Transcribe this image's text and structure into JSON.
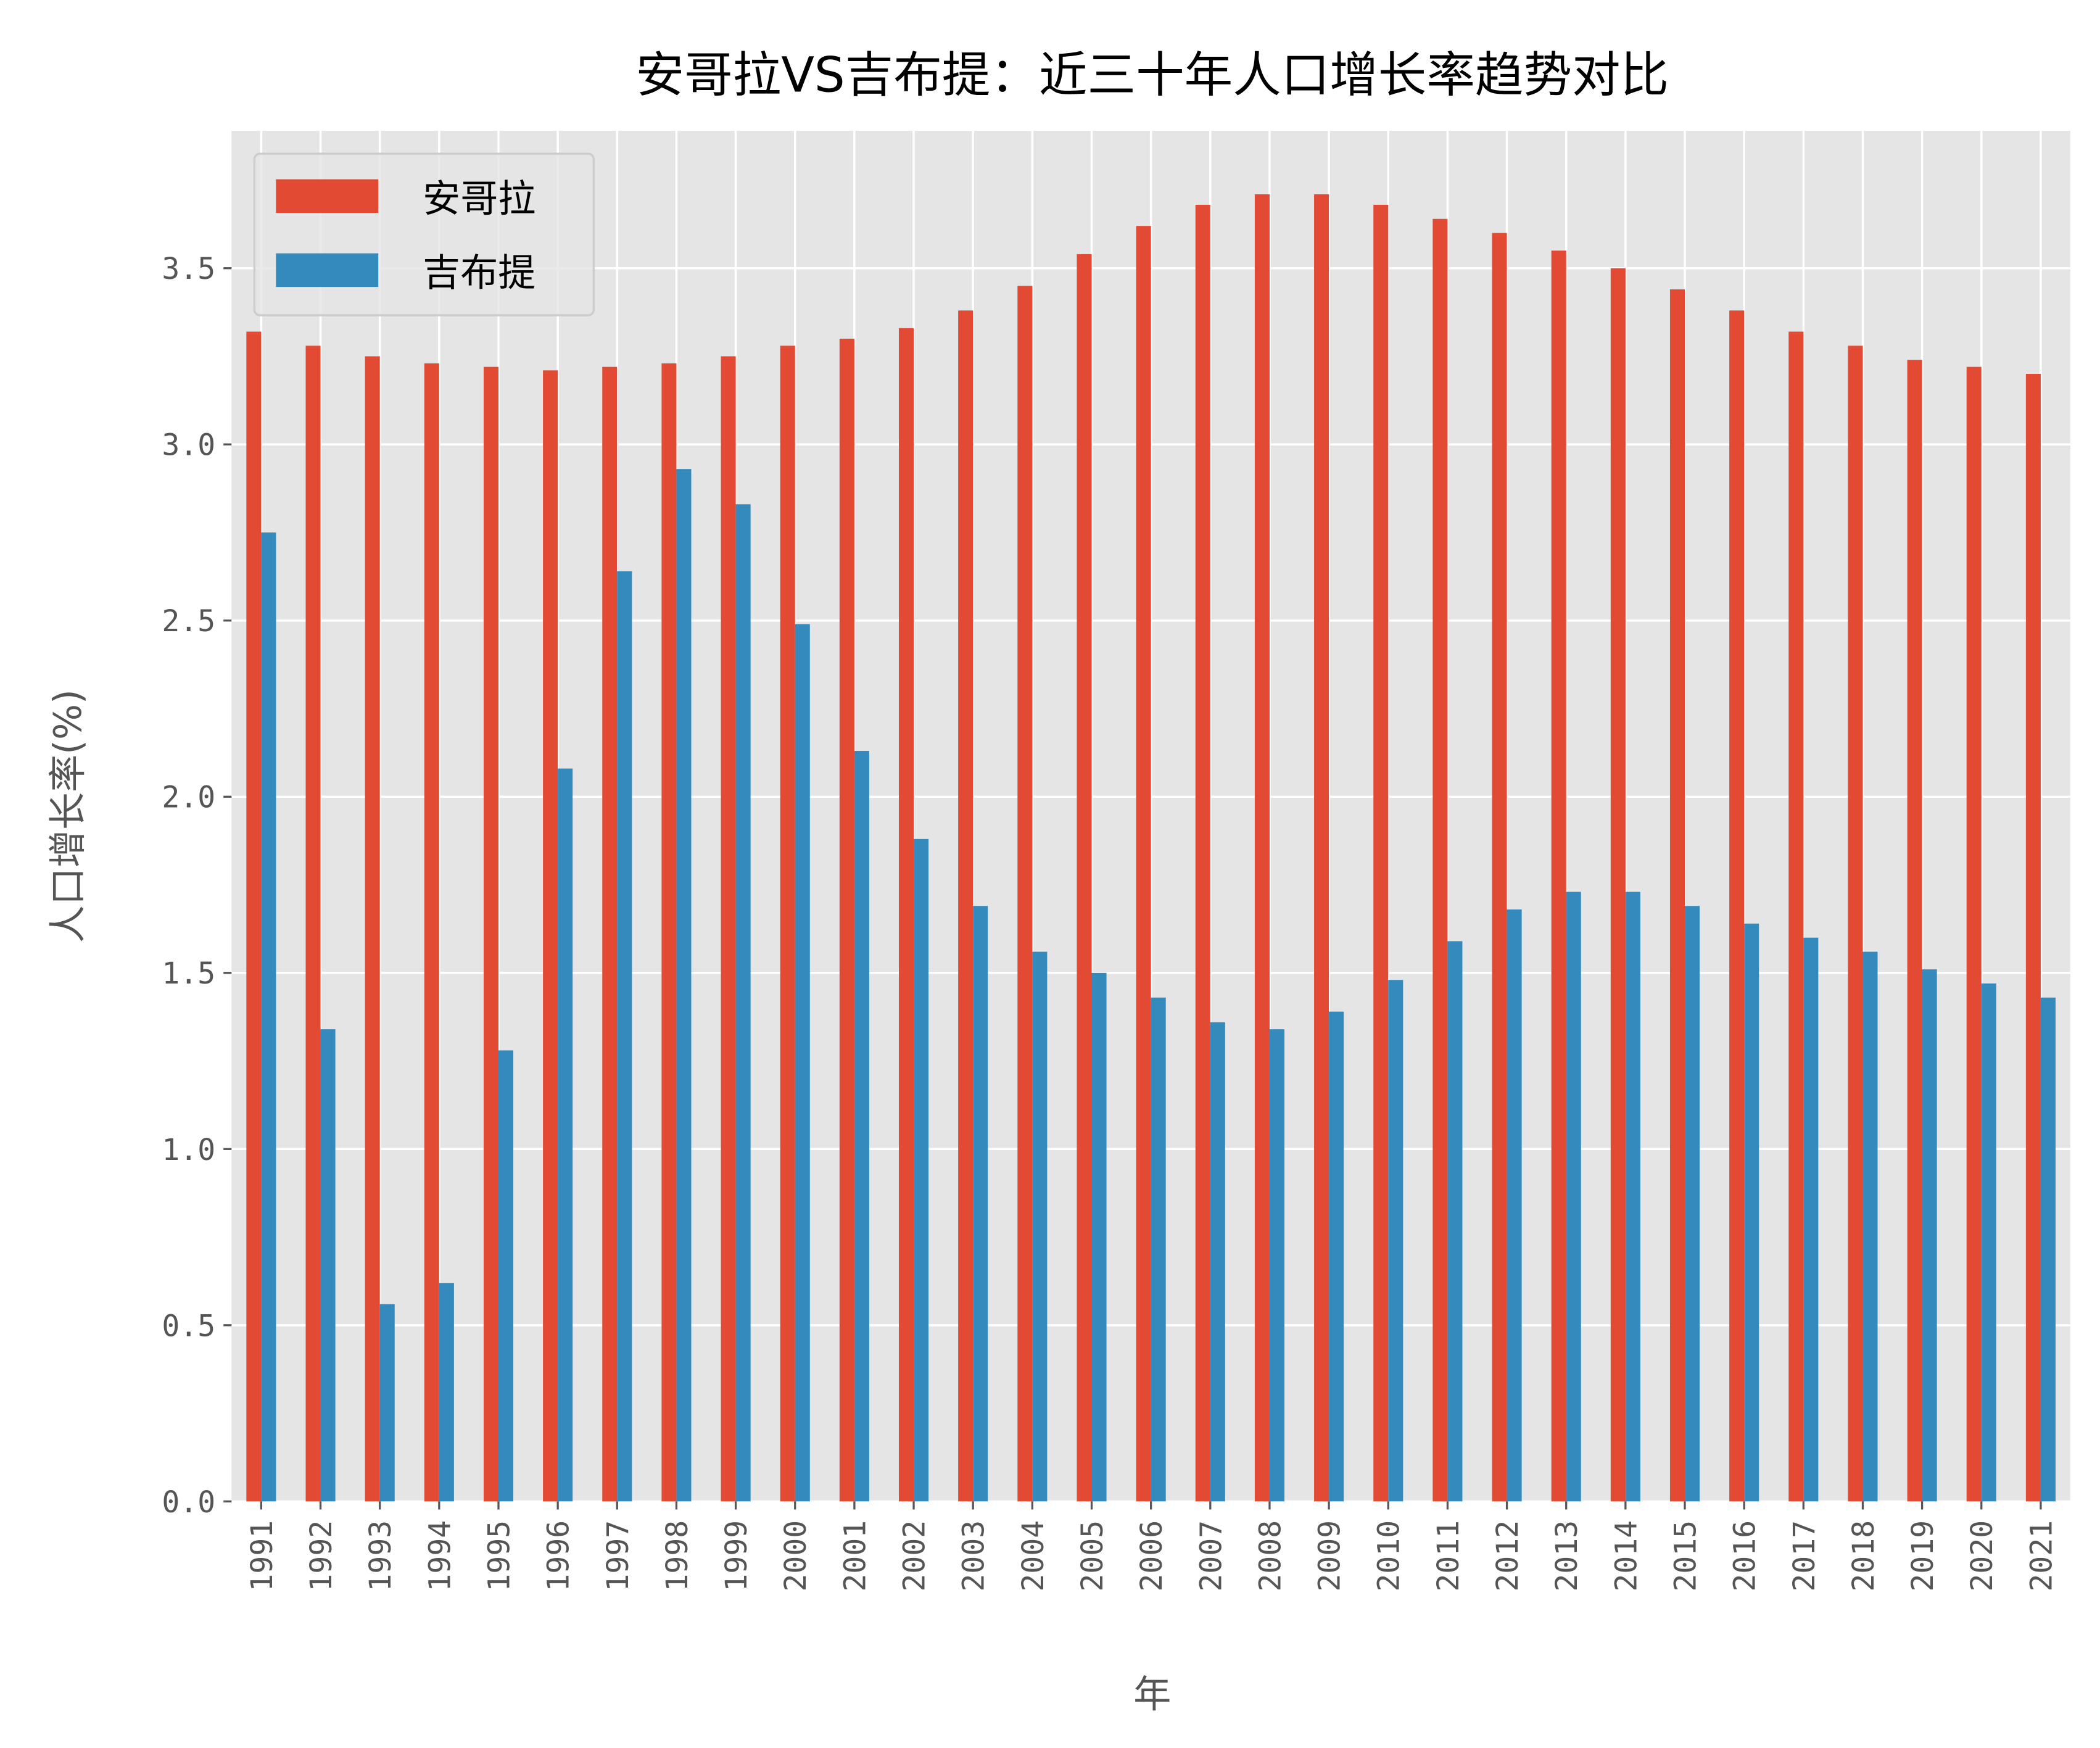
{
  "chart_data": {
    "type": "bar",
    "title": "安哥拉VS吉布提：近三十年人口增长率趋势对比",
    "xlabel": "年",
    "ylabel": "人口增长率(%)",
    "ylim": [
      0,
      3.89
    ],
    "yticks": [
      "0.0",
      "0.5",
      "1.0",
      "1.5",
      "2.0",
      "2.5",
      "3.0",
      "3.5"
    ],
    "grid": true,
    "legend_position": "top-left",
    "categories": [
      "1991",
      "1992",
      "1993",
      "1994",
      "1995",
      "1996",
      "1997",
      "1998",
      "1999",
      "2000",
      "2001",
      "2002",
      "2003",
      "2004",
      "2005",
      "2006",
      "2007",
      "2008",
      "2009",
      "2010",
      "2011",
      "2012",
      "2013",
      "2014",
      "2015",
      "2016",
      "2017",
      "2018",
      "2019",
      "2020",
      "2021"
    ],
    "series": [
      {
        "name": "安哥拉",
        "color": "#E24A33",
        "values": [
          3.32,
          3.28,
          3.25,
          3.23,
          3.22,
          3.21,
          3.22,
          3.23,
          3.25,
          3.28,
          3.3,
          3.33,
          3.38,
          3.45,
          3.54,
          3.62,
          3.68,
          3.71,
          3.71,
          3.68,
          3.64,
          3.6,
          3.55,
          3.5,
          3.44,
          3.38,
          3.32,
          3.28,
          3.24,
          3.22,
          3.2
        ]
      },
      {
        "name": "吉布提",
        "color": "#348ABD",
        "values": [
          2.75,
          1.34,
          0.56,
          0.62,
          1.28,
          2.08,
          2.64,
          2.93,
          2.83,
          2.49,
          2.13,
          1.88,
          1.69,
          1.56,
          1.5,
          1.43,
          1.36,
          1.34,
          1.39,
          1.48,
          1.59,
          1.68,
          1.73,
          1.73,
          1.69,
          1.64,
          1.6,
          1.56,
          1.51,
          1.47,
          1.43
        ]
      }
    ]
  }
}
